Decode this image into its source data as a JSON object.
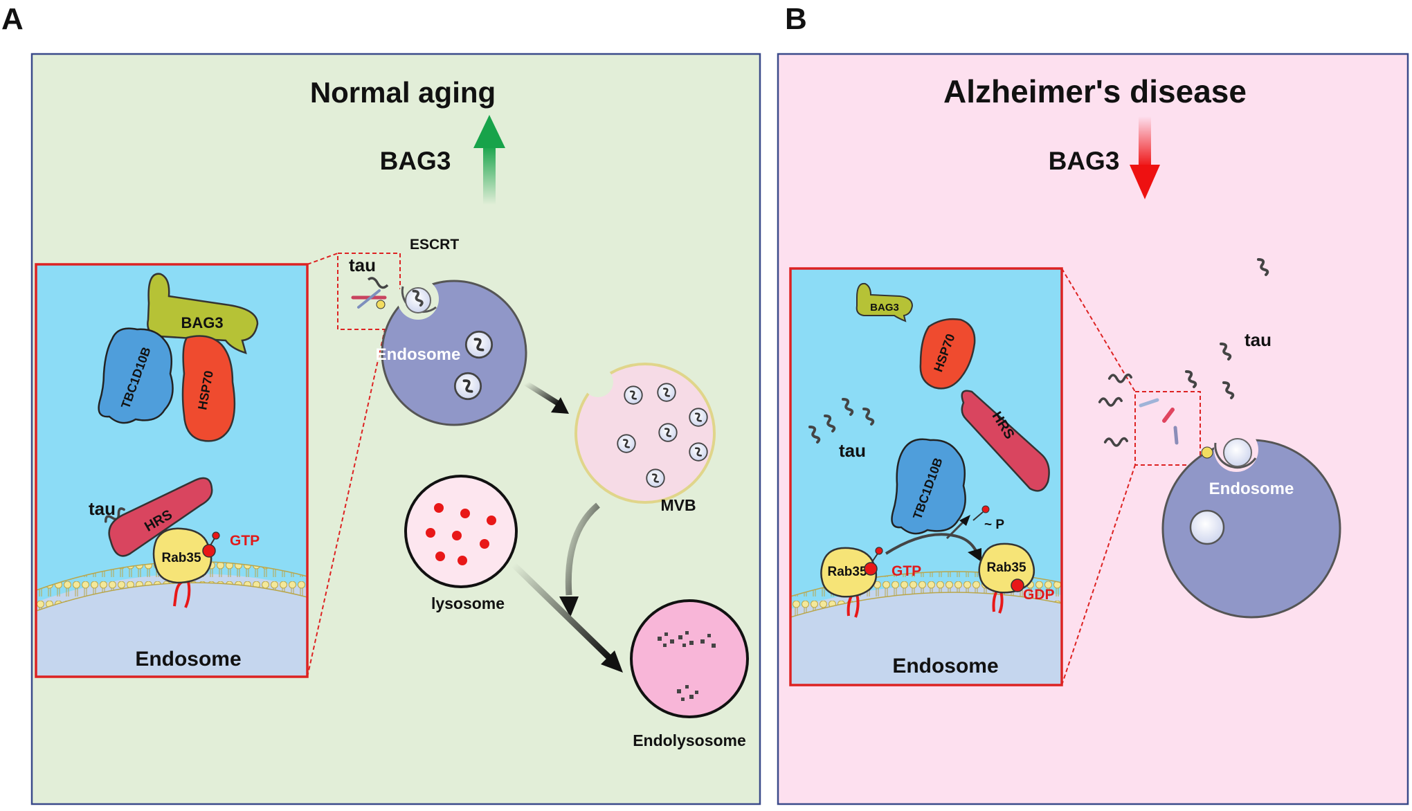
{
  "panel_a": {
    "letter": "A",
    "title": "Normal aging",
    "bag3": "BAG3",
    "inset": {
      "bag3": "BAG3",
      "tbc1d10b": "TBC1D10B",
      "hsp70": "HSP70",
      "tau": "tau",
      "hrs": "HRS",
      "rab35": "Rab35",
      "gtp": "GTP",
      "endosome": "Endosome"
    },
    "tau": "tau",
    "escrt": "ESCRT",
    "endosome": "Endosome",
    "mvb": "MVB",
    "lysosome": "lysosome",
    "endolysosome": "Endolysosome"
  },
  "panel_b": {
    "letter": "B",
    "title": "Alzheimer's disease",
    "bag3": "BAG3",
    "inset": {
      "bag3": "BAG3",
      "hsp70": "HSP70",
      "hrs": "HRS",
      "tau": "tau",
      "tbc1d10b": "TBC1D10B",
      "p": "~ P",
      "rab35_left": "Rab35",
      "gtp": "GTP",
      "rab35_right": "Rab35",
      "gdp": "GDP",
      "endosome": "Endosome"
    },
    "tau": "tau",
    "endosome": "Endosome"
  },
  "colors": {
    "panel_a_bg": "#e2eed8",
    "panel_b_bg": "#fde0ef",
    "inset_bg": "#8cdcf6",
    "endosome": "#9097c8",
    "red_accent": "#e01a1a",
    "green_arrow": "#1fa84a"
  }
}
